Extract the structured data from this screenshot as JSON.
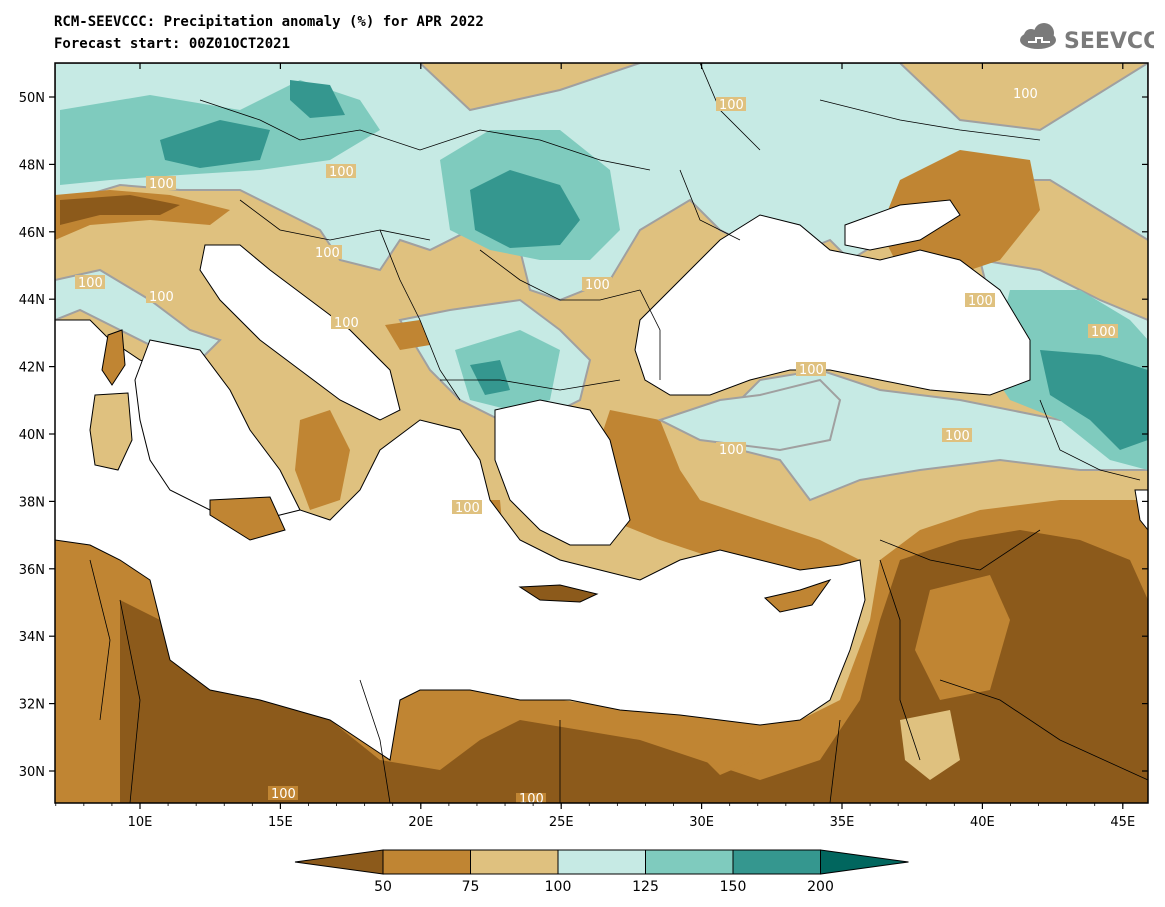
{
  "header": {
    "title_line1": "RCM-SEEVCCC: Precipitation anomaly (%) for APR 2022",
    "title_line2": "Forecast start: 00Z01OCT2021"
  },
  "logo": {
    "text": "SEEVCCC",
    "icon": "cloud-icon"
  },
  "map": {
    "lon_labels": [
      "10E",
      "15E",
      "20E",
      "25E",
      "30E",
      "35E",
      "40E",
      "45E"
    ],
    "lat_labels": [
      "50N",
      "48N",
      "46N",
      "44N",
      "42N",
      "40N",
      "38N",
      "36N",
      "34N",
      "32N",
      "30N"
    ],
    "contour_label": "100"
  },
  "colorbar": {
    "tick_labels": [
      "50",
      "75",
      "100",
      "125",
      "150",
      "200"
    ],
    "colors": [
      "#8c5a1b",
      "#c08533",
      "#dfc17f",
      "#c6eae4",
      "#7fcbbe",
      "#35978f",
      "#01665e"
    ]
  },
  "colors": {
    "land_lt50": "#8c5a1b",
    "land_50_75": "#c08533",
    "land_75_100": "#dfc17f",
    "land_100_125": "#c6eae4",
    "land_125_150": "#7fcbbe",
    "land_150_200": "#35978f",
    "land_gt200": "#01665e",
    "sea": "#ffffff",
    "contour": "#a0a0a0"
  }
}
